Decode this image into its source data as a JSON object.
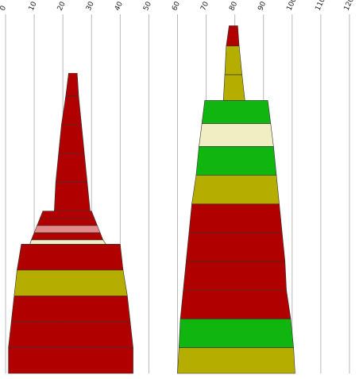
{
  "chart_data": {
    "type": "stacked-tapered-column",
    "x_ticks": [
      0,
      10,
      20,
      30,
      40,
      50,
      60,
      70,
      80,
      90,
      100,
      110,
      120
    ],
    "xlim": [
      0,
      120
    ],
    "grid": true,
    "grid_axis": "x",
    "colors": {
      "red": "#b00000",
      "olive": "#b5ad00",
      "green": "#10b510",
      "cream": "#f0eec2",
      "pink": "#e38b8b",
      "outline": "#333333"
    },
    "columns": [
      {
        "segments": [
          {
            "top_left": 1.0,
            "top_right": 44.5,
            "bottom_left": 1.0,
            "bottom_right": 44.5,
            "height": 9,
            "color": "red"
          },
          {
            "top_left": 2.0,
            "top_right": 43.5,
            "bottom_left": 1.0,
            "bottom_right": 44.5,
            "height": 9,
            "color": "red"
          },
          {
            "top_left": 3.0,
            "top_right": 42.5,
            "bottom_left": 2.0,
            "bottom_right": 43.5,
            "height": 9,
            "color": "red"
          },
          {
            "top_left": 4.0,
            "top_right": 41.0,
            "bottom_left": 3.0,
            "bottom_right": 42.5,
            "height": 9,
            "color": "olive"
          },
          {
            "top_left": 5.5,
            "top_right": 40.0,
            "bottom_left": 4.0,
            "bottom_right": 41.0,
            "height": 9,
            "color": "red"
          },
          {
            "top_left": 9.0,
            "top_right": 34.0,
            "bottom_left": 8.5,
            "bottom_right": 35.0,
            "height": 1.5,
            "color": "cream"
          },
          {
            "top_left": 10.0,
            "top_right": 33.0,
            "bottom_left": 9.0,
            "bottom_right": 34.0,
            "height": 2.5,
            "color": "red"
          },
          {
            "top_left": 11.0,
            "top_right": 32.0,
            "bottom_left": 10.0,
            "bottom_right": 33.0,
            "height": 2.5,
            "color": "pink"
          },
          {
            "top_left": 12.0,
            "top_right": 31.0,
            "bottom_left": 11.0,
            "bottom_right": 32.0,
            "height": 2.5,
            "color": "red"
          },
          {
            "top_left": 13.0,
            "top_right": 30.0,
            "bottom_left": 12.0,
            "bottom_right": 31.0,
            "height": 2.5,
            "color": "red"
          },
          {
            "top_left": 17.5,
            "top_right": 28.5,
            "bottom_left": 17.0,
            "bottom_right": 29.5,
            "height": 10,
            "color": "red"
          },
          {
            "top_left": 18.5,
            "top_right": 27.5,
            "bottom_left": 17.5,
            "bottom_right": 28.5,
            "height": 10,
            "color": "red"
          },
          {
            "top_left": 19.5,
            "top_right": 26.5,
            "bottom_left": 18.5,
            "bottom_right": 27.5,
            "height": 10,
            "color": "red"
          },
          {
            "top_left": 21.0,
            "top_right": 25.5,
            "bottom_left": 19.5,
            "bottom_right": 26.5,
            "height": 10,
            "color": "red"
          },
          {
            "top_left": 22.0,
            "top_right": 25.0,
            "bottom_left": 21.0,
            "bottom_right": 25.5,
            "height": 8,
            "color": "red"
          }
        ]
      },
      {
        "segments": [
          {
            "top_left": 60.5,
            "top_right": 100.5,
            "bottom_left": 60.0,
            "bottom_right": 101.0,
            "height": 9,
            "color": "olive"
          },
          {
            "top_left": 61.0,
            "top_right": 99.5,
            "bottom_left": 60.5,
            "bottom_right": 100.5,
            "height": 10,
            "color": "green"
          },
          {
            "top_left": 62.0,
            "top_right": 98.0,
            "bottom_left": 61.0,
            "bottom_right": 99.5,
            "height": 10,
            "color": "red"
          },
          {
            "top_left": 63.0,
            "top_right": 97.5,
            "bottom_left": 62.0,
            "bottom_right": 98.0,
            "height": 10,
            "color": "red"
          },
          {
            "top_left": 64.0,
            "top_right": 96.5,
            "bottom_left": 63.0,
            "bottom_right": 97.5,
            "height": 10,
            "color": "red"
          },
          {
            "top_left": 65.0,
            "top_right": 95.5,
            "bottom_left": 64.0,
            "bottom_right": 96.5,
            "height": 10,
            "color": "red"
          },
          {
            "top_left": 66.5,
            "top_right": 94.5,
            "bottom_left": 65.0,
            "bottom_right": 95.5,
            "height": 10,
            "color": "olive"
          },
          {
            "top_left": 67.5,
            "top_right": 93.5,
            "bottom_left": 66.5,
            "bottom_right": 94.5,
            "height": 10,
            "color": "green"
          },
          {
            "top_left": 68.5,
            "top_right": 92.5,
            "bottom_left": 67.5,
            "bottom_right": 93.5,
            "height": 8,
            "color": "cream"
          },
          {
            "top_left": 69.5,
            "top_right": 91.5,
            "bottom_left": 68.5,
            "bottom_right": 92.5,
            "height": 8,
            "color": "green"
          },
          {
            "top_left": 76.5,
            "top_right": 82.5,
            "bottom_left": 76.0,
            "bottom_right": 83.5,
            "height": 9,
            "color": "olive"
          },
          {
            "top_left": 77.0,
            "top_right": 81.5,
            "bottom_left": 76.5,
            "bottom_right": 82.5,
            "height": 10,
            "color": "olive"
          },
          {
            "top_left": 78.0,
            "top_right": 81.0,
            "bottom_left": 77.0,
            "bottom_right": 81.5,
            "height": 7,
            "color": "red"
          }
        ]
      }
    ]
  }
}
